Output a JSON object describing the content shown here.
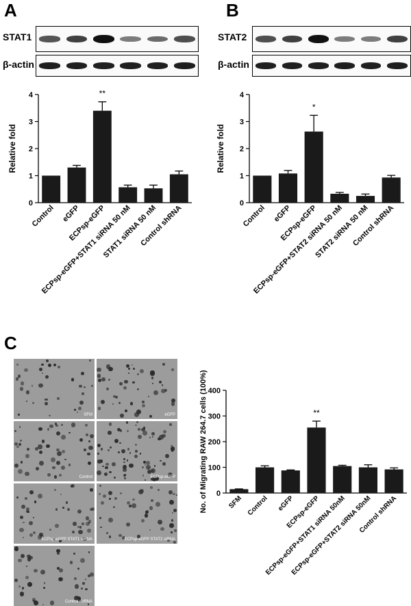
{
  "panels": {
    "A": {
      "letter": "A",
      "blots": [
        {
          "label": "STAT1",
          "intensity": [
            0.55,
            0.7,
            1.0,
            0.3,
            0.4,
            0.6
          ]
        },
        {
          "label": "β-actin",
          "intensity": [
            0.9,
            0.9,
            0.9,
            0.9,
            0.9,
            0.9
          ]
        }
      ]
    },
    "B": {
      "letter": "B",
      "blots": [
        {
          "label": "STAT2",
          "intensity": [
            0.6,
            0.7,
            1.0,
            0.3,
            0.3,
            0.7
          ]
        },
        {
          "label": "β-actin",
          "intensity": [
            0.9,
            0.9,
            0.9,
            0.9,
            0.9,
            0.9
          ]
        }
      ]
    },
    "C": {
      "letter": "C",
      "micrographs": [
        {
          "label": "SFM",
          "density": 0.3
        },
        {
          "label": "eGFP",
          "density": 0.5
        },
        {
          "label": "Control",
          "density": 0.55
        },
        {
          "label": "ECPsp-eGFP",
          "density": 1.0
        },
        {
          "label": "ECPsp-eGFP STAT1 siRNA",
          "density": 0.5
        },
        {
          "label": "ECPsp-eGFP STAT2 siRNA",
          "density": 0.5
        },
        {
          "label": "Control shRNA",
          "density": 0.45
        }
      ]
    }
  },
  "chart_data": [
    {
      "type": "bar",
      "panel": "A",
      "categories": [
        "Control",
        "eGFP",
        "ECPsp-eGFP",
        "ECPsp-eGFP+STAT1 siRNA 50 nM",
        "STAT1 siRNA 50 nM",
        "Control shRNA"
      ],
      "values": [
        1.0,
        1.3,
        3.4,
        0.57,
        0.53,
        1.05
      ],
      "errors": [
        0.0,
        0.08,
        0.33,
        0.08,
        0.12,
        0.12
      ],
      "annotations": [
        "",
        "",
        "**",
        "",
        "",
        ""
      ],
      "ylabel": "Relative fold",
      "ylim": [
        0,
        4
      ],
      "yticks": [
        0,
        1,
        2,
        3,
        4
      ]
    },
    {
      "type": "bar",
      "panel": "B",
      "categories": [
        "Control",
        "eGFP",
        "ECPsp-eGFP",
        "ECPsp-eGFP+STAT2 siRNA 50 nM",
        "STAT2 siRNA 50 nM",
        "Control shRNA"
      ],
      "values": [
        1.0,
        1.08,
        2.63,
        0.33,
        0.25,
        0.93
      ],
      "errors": [
        0.0,
        0.11,
        0.6,
        0.05,
        0.07,
        0.08
      ],
      "annotations": [
        "",
        "",
        "*",
        "",
        "",
        ""
      ],
      "ylabel": "Relative fold",
      "ylim": [
        0,
        4
      ],
      "yticks": [
        0,
        1,
        2,
        3,
        4
      ]
    },
    {
      "type": "bar",
      "panel": "C",
      "categories": [
        "SFM",
        "Control",
        "eGFP",
        "ECPsp-eGFP",
        "ECPsp-eGFP+STAT1 siRNA 50nM",
        "ECPsp-eGFP+STAT2 siRNA 50nM",
        "Control shRNA"
      ],
      "values": [
        15,
        100,
        88,
        255,
        105,
        100,
        92
      ],
      "errors": [
        1,
        6,
        2,
        25,
        3,
        10,
        6
      ],
      "annotations": [
        "",
        "",
        "",
        "**",
        "",
        "",
        ""
      ],
      "ylabel": "No. of Migrating RAW 264.7 cells (100%)",
      "ylim": [
        0,
        400
      ],
      "yticks": [
        0,
        100,
        200,
        300,
        400
      ]
    }
  ]
}
